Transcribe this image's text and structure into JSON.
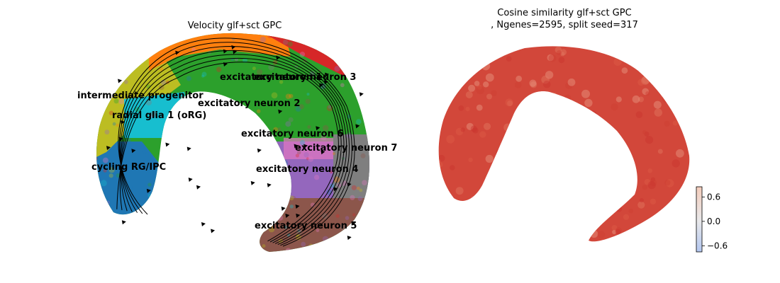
{
  "chart_data": [
    {
      "type": "scatter",
      "title": "Velocity glf+sct GPC",
      "overlay": "velocity-streamlines",
      "axes_visible": false,
      "legend": "on-data",
      "clusters": [
        {
          "name": "cycling RG/IPC",
          "color": "#1f77b4"
        },
        {
          "name": "intermediate progenitor",
          "color": "#bcbd22"
        },
        {
          "name": "radial glia 1 (oRG)",
          "color": "#17becf"
        },
        {
          "name": "excitatory neuron 1",
          "color": "#ff7f0e"
        },
        {
          "name": "excitatory neuron 2",
          "color": "#2ca02c"
        },
        {
          "name": "excitatory neuron 3",
          "color": "#d62728"
        },
        {
          "name": "excitatory neuron 4",
          "color": "#9467bd"
        },
        {
          "name": "excitatory neuron 5",
          "color": "#8c564b"
        },
        {
          "name": "excitatory neuron 6",
          "color": "#e377c2"
        },
        {
          "name": "excitatory neuron 7",
          "color": "#7f7f7f"
        }
      ],
      "labels": [
        "excitatory neuron 3",
        "excitatory neuron 1",
        "intermediate progenitor",
        "excitatory neuron 2",
        "radial glia 1 (oRG)",
        "excitatory neuron 6",
        "excitatory neuron 7",
        "cycling RG/IPC",
        "excitatory neuron 4",
        "excitatory neuron 5"
      ]
    },
    {
      "type": "scatter",
      "title_line1": "Cosine similarity glf+sct GPC",
      "title_line2": ", Ngenes=2595, split seed=317",
      "axes_visible": false,
      "colorbar": {
        "colormap": "coolwarm",
        "ticks": [
          "0.6",
          "0.0",
          "−0.6"
        ],
        "tick_values": [
          0.6,
          0.0,
          -0.6
        ],
        "range": [
          -0.75,
          0.85
        ],
        "placement": "bottom-right"
      },
      "point_color": "#d2473a",
      "value_level": 0.8
    }
  ]
}
